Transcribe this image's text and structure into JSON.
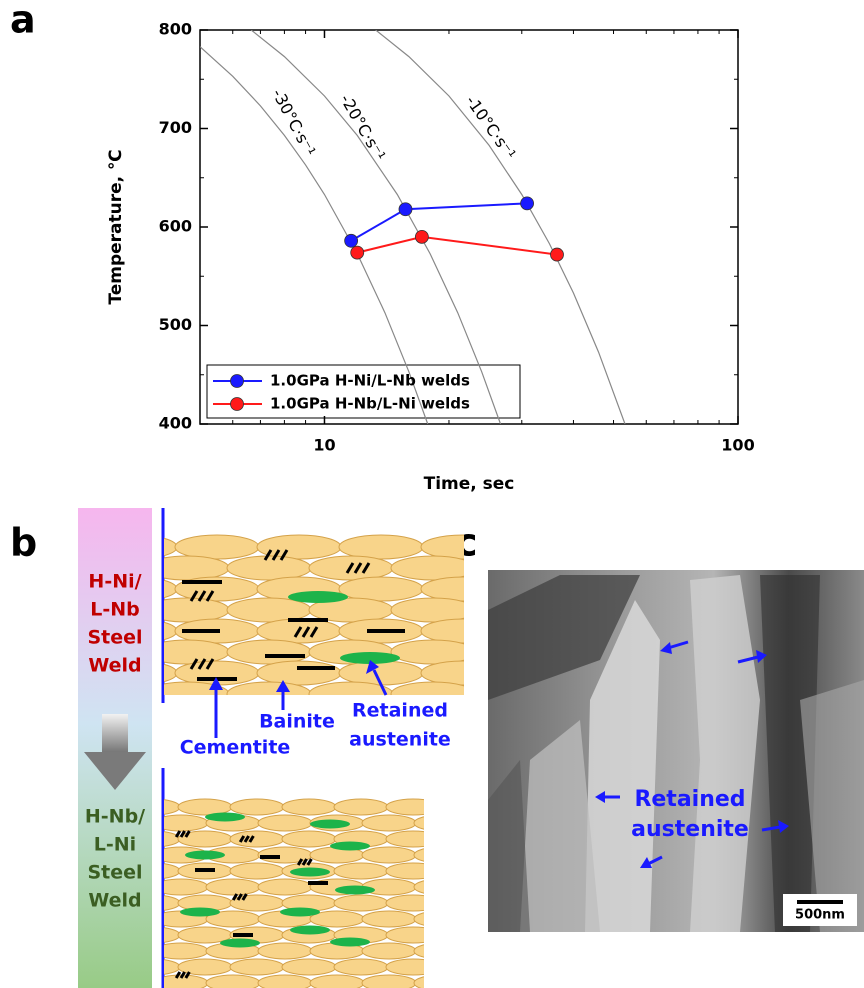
{
  "chart_data": {
    "type": "line",
    "xlabel": "Time, sec",
    "ylabel": "Temperature, ℃",
    "xscale": "log",
    "xlim": [
      5,
      100
    ],
    "ylim": [
      400,
      800
    ],
    "xticks": [
      10,
      100
    ],
    "xminorticks": [
      6,
      7,
      8,
      9,
      20,
      30,
      40,
      50,
      60,
      70,
      80,
      90
    ],
    "yticks": [
      400,
      500,
      600,
      700,
      800
    ],
    "yminorticks": [
      450,
      550,
      650,
      750
    ],
    "legend": "lower left",
    "series": [
      {
        "name": "1.0GPa H-Ni/L-Nb welds",
        "color": "#1a1aff",
        "x": [
          11.6,
          15.7,
          30.9
        ],
        "values": [
          586,
          618,
          624
        ]
      },
      {
        "name": "1.0GPa H-Nb/L-Ni welds",
        "color": "#ff1a1a",
        "x": [
          12.0,
          17.2,
          36.5
        ],
        "values": [
          574,
          590,
          572
        ]
      }
    ],
    "cooling_curves": [
      {
        "label": "-30°C·s⁻¹",
        "x": [
          5,
          6,
          7,
          8,
          9,
          10,
          12,
          14,
          16,
          17.77
        ],
        "values": [
          783,
          753,
          723,
          693,
          663,
          633,
          573,
          513,
          453,
          400
        ]
      },
      {
        "label": "-20°C·s⁻¹",
        "x": [
          6.65,
          8,
          10,
          12,
          15,
          18,
          21,
          24,
          26.65
        ],
        "values": [
          800,
          773,
          733,
          693,
          633,
          573,
          513,
          453,
          400
        ]
      },
      {
        "label": "-10°C·s⁻¹",
        "x": [
          13.3,
          16,
          20,
          25,
          30,
          35,
          40,
          46,
          53.3
        ],
        "values": [
          800,
          773,
          733,
          683,
          633,
          583,
          533,
          473,
          400
        ]
      }
    ]
  },
  "panel_labels": [
    "a",
    "b",
    "c"
  ],
  "diagram": {
    "top_weld": [
      "H-Ni/",
      "L-Nb",
      "Steel",
      "Weld"
    ],
    "bottom_weld": [
      "H-Nb/",
      "L-Ni",
      "Steel",
      "Weld"
    ],
    "cementite": "Cementite",
    "bainite": "Bainite",
    "retained_austenite": [
      "Retained",
      "austenite"
    ]
  },
  "micrograph": {
    "label": [
      "Retained",
      "austenite"
    ],
    "scale_bar": "500nm"
  }
}
